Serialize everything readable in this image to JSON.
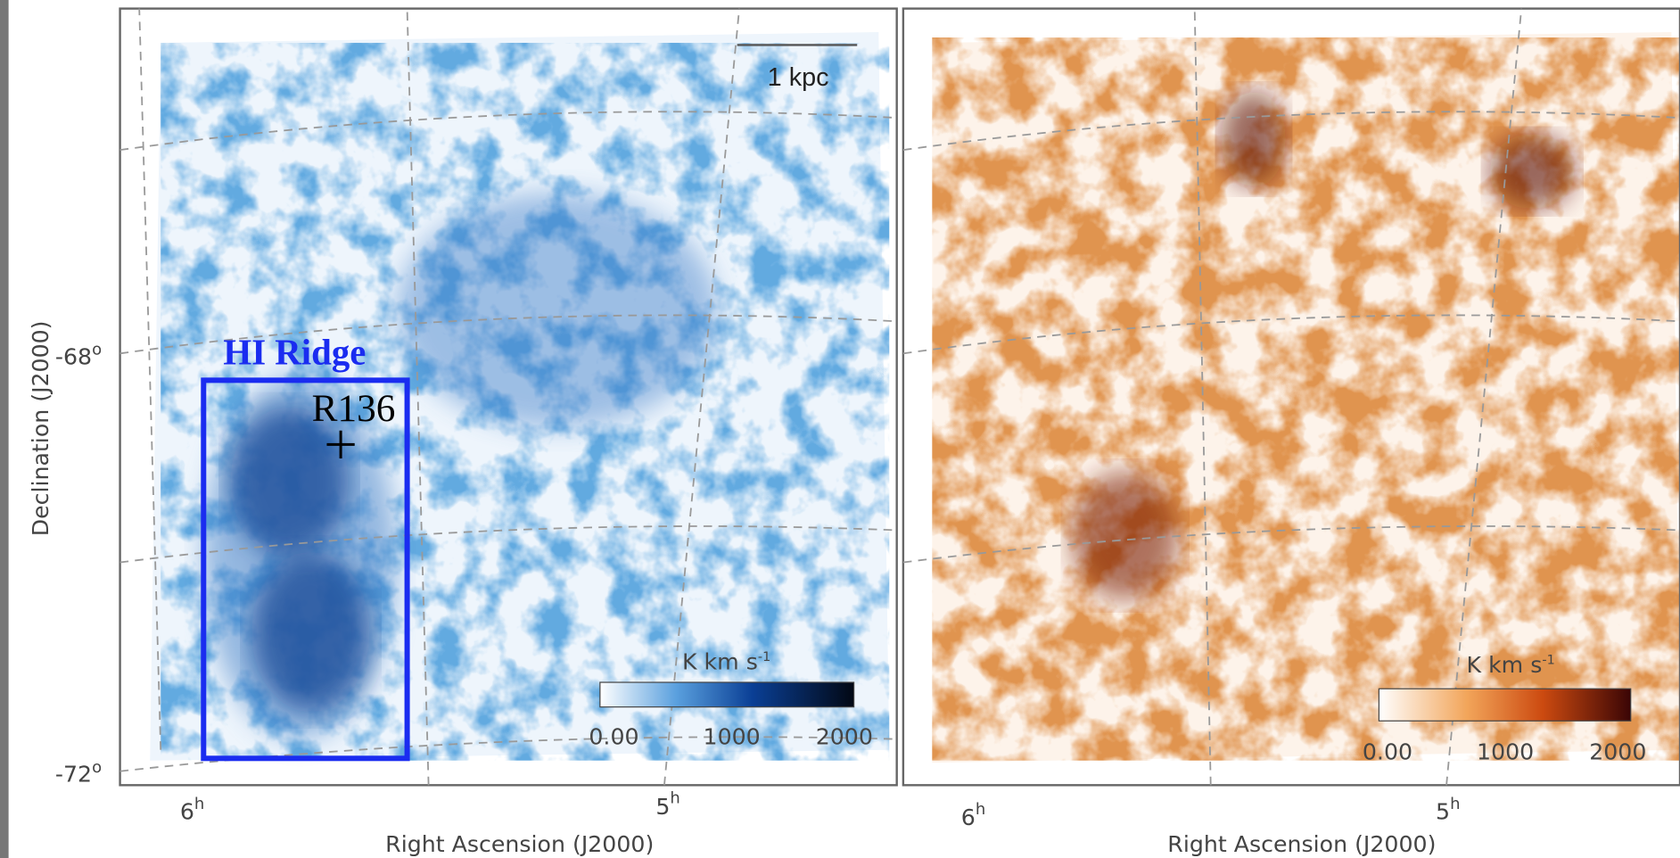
{
  "panels": [
    {
      "scale_bar": "1 kpc",
      "y_axis": {
        "label": "Declination (J2000)",
        "ticks": [
          {
            "base": "-68",
            "sup": "o"
          },
          {
            "base": "-72",
            "sup": "o"
          }
        ]
      },
      "x_axis": {
        "label": "Right Ascension (J2000)",
        "ticks": [
          {
            "base": "6",
            "sup": "h"
          },
          {
            "base": "5",
            "sup": "h"
          }
        ]
      },
      "colorbar": {
        "unit": "K km s",
        "unit_exponent": "-1",
        "ticks": [
          "0.00",
          "1000",
          "2000"
        ]
      }
    },
    {
      "x_axis": {
        "label": "Right Ascension (J2000)",
        "ticks": [
          {
            "base": "6",
            "sup": "h"
          },
          {
            "base": "5",
            "sup": "h"
          }
        ]
      },
      "colorbar": {
        "unit": "K km s",
        "unit_exponent": "-1",
        "ticks": [
          "0.00",
          "1000",
          "2000"
        ]
      }
    }
  ],
  "annotations": {
    "region": "HI Ridge",
    "source": "R136"
  }
}
